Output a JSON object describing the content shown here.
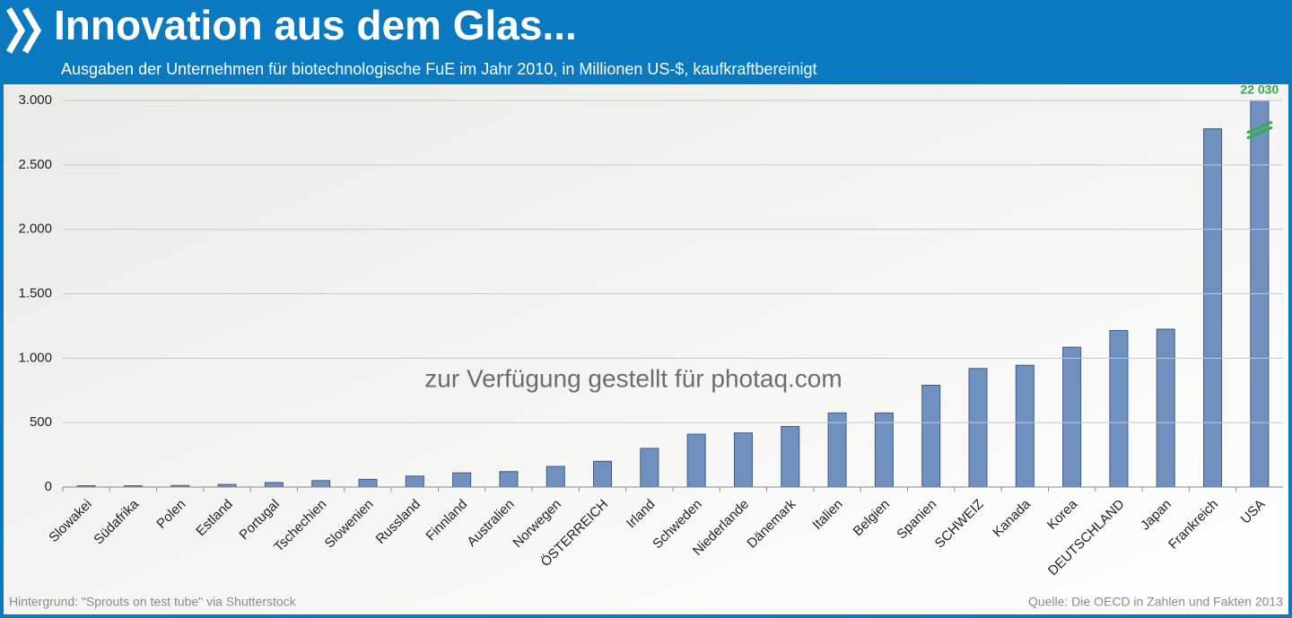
{
  "chart_data": {
    "type": "bar",
    "title": "Innovation aus dem Glas...",
    "subtitle": "Ausgaben der Unternehmen für biotechnologische FuE im Jahr 2010, in Millionen US-$, kaufkraftbereinigt",
    "watermark": "zur Verfügung gestellt für photaq.com",
    "source": "Quelle:  Die OECD in Zahlen und Fakten 2013",
    "background_credit": "Hintergrund: \"Sprouts on test tube\" via Shutterstock",
    "categories": [
      "Slowakei",
      "Südafrika",
      "Polen",
      "Estland",
      "Portugal",
      "Tschechien",
      "Slowenien",
      "Russland",
      "Finnland",
      "Australien",
      "Norwegen",
      "ÖSTERREICH",
      "Irland",
      "Schweden",
      "Niederlande",
      "Dänemark",
      "Italien",
      "Belgien",
      "Spanien",
      "SCHWEIZ",
      "Kanada",
      "Korea",
      "DEUTSCHLAND",
      "Japan",
      "Frankreich",
      "USA"
    ],
    "values": [
      10,
      10,
      12,
      20,
      35,
      50,
      60,
      85,
      110,
      120,
      160,
      200,
      300,
      410,
      420,
      470,
      575,
      575,
      790,
      920,
      945,
      1085,
      1215,
      1225,
      2780,
      22030
    ],
    "value_labels": [
      null,
      null,
      null,
      null,
      null,
      null,
      null,
      null,
      null,
      null,
      null,
      null,
      null,
      null,
      null,
      null,
      null,
      null,
      null,
      null,
      null,
      null,
      null,
      null,
      null,
      "22 030"
    ],
    "color": "#7091c0",
    "ylim": [
      0,
      3000
    ],
    "yticks": [
      0,
      500,
      {
        "value": 1000,
        "label": "1.000"
      },
      {
        "value": 1500,
        "label": "1.500"
      },
      {
        "value": 2000,
        "label": "2.000"
      },
      {
        "value": 2500,
        "label": "2.500"
      },
      {
        "value": 3000,
        "label": "3.000"
      }
    ],
    "grid": true
  }
}
